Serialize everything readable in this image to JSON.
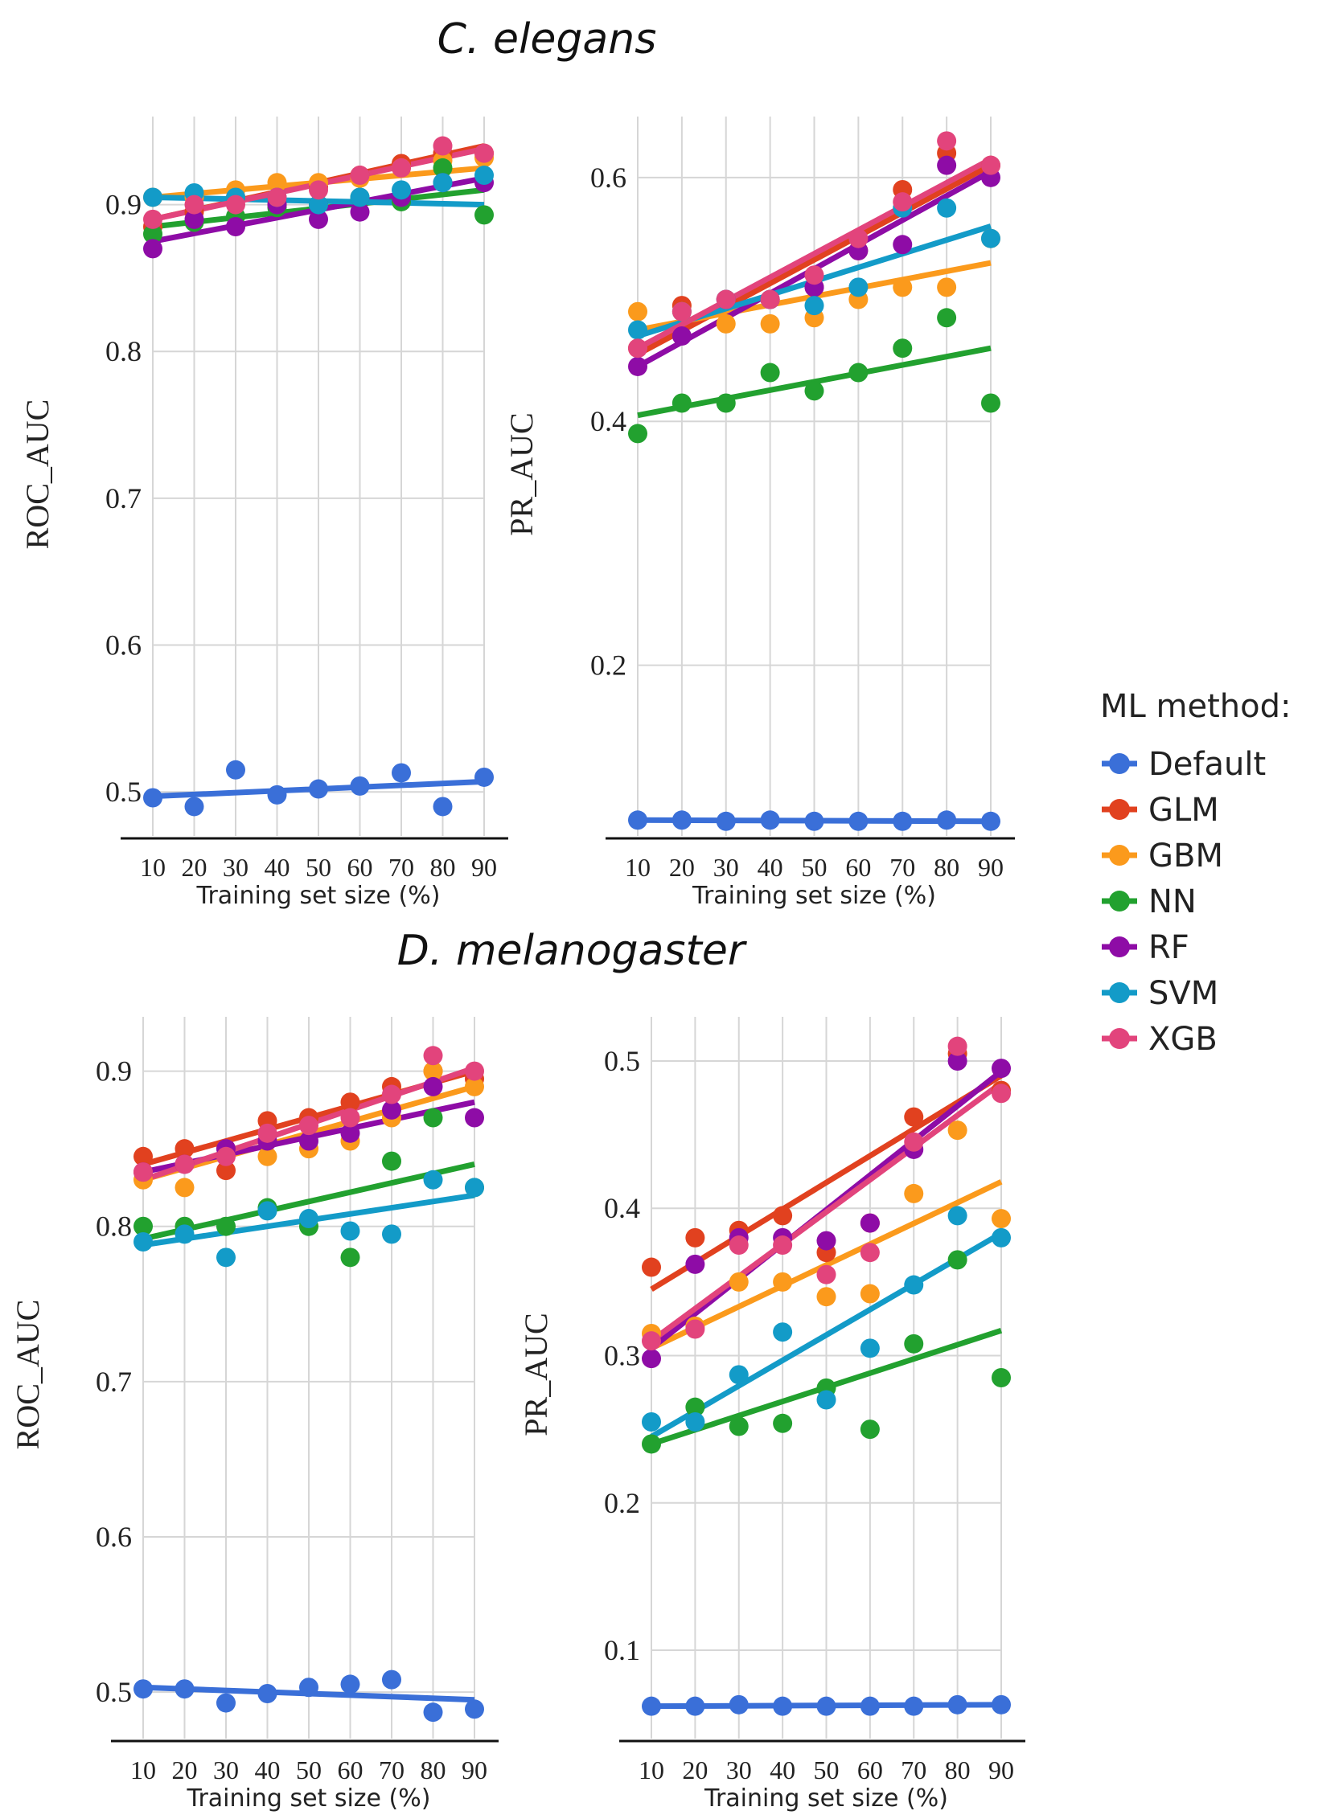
{
  "sections": [
    {
      "title": "C. elegans"
    },
    {
      "title": "D. melanogaster"
    }
  ],
  "legend": {
    "title": "ML method:",
    "items": [
      {
        "name": "Default",
        "color": "#3a6fd8"
      },
      {
        "name": "GLM",
        "color": "#e1411f"
      },
      {
        "name": "GBM",
        "color": "#fb9a1c"
      },
      {
        "name": "NN",
        "color": "#22a12f"
      },
      {
        "name": "RF",
        "color": "#8e0ca6"
      },
      {
        "name": "SVM",
        "color": "#139bc8"
      },
      {
        "name": "XGB",
        "color": "#e2447c"
      }
    ]
  },
  "chart_data": [
    {
      "id": "c-elegans-roc",
      "type": "scatter",
      "section": "C. elegans",
      "xlabel": "Training set size (%)",
      "ylabel": "ROC_AUC",
      "x": [
        10,
        20,
        30,
        40,
        50,
        60,
        70,
        80,
        90
      ],
      "xlim": [
        10,
        90
      ],
      "ylim": [
        0.47,
        0.96
      ],
      "yticks": [
        0.5,
        0.6,
        0.7,
        0.8,
        0.9
      ],
      "ytick_labels": [
        "0.5",
        "0.6",
        "0.7",
        "0.8",
        "0.9"
      ],
      "xtick_labels": [
        "10",
        "20",
        "30",
        "40",
        "50",
        "60",
        "70",
        "80",
        "90"
      ],
      "series": [
        {
          "name": "Default",
          "values": [
            0.496,
            0.49,
            0.515,
            0.498,
            0.502,
            0.504,
            0.513,
            0.49,
            0.51
          ],
          "fit": [
            0.497,
            0.507
          ]
        },
        {
          "name": "GLM",
          "values": [
            0.885,
            0.895,
            0.905,
            0.9,
            0.912,
            0.92,
            0.928,
            0.935,
            0.935
          ],
          "fit": [
            0.89,
            0.94
          ]
        },
        {
          "name": "GBM",
          "values": [
            0.905,
            0.905,
            0.91,
            0.915,
            0.915,
            0.918,
            0.925,
            0.93,
            0.932
          ],
          "fit": [
            0.905,
            0.925
          ]
        },
        {
          "name": "NN",
          "values": [
            0.88,
            0.888,
            0.892,
            0.898,
            0.9,
            0.905,
            0.902,
            0.925,
            0.893
          ],
          "fit": [
            0.885,
            0.91
          ]
        },
        {
          "name": "RF",
          "values": [
            0.87,
            0.89,
            0.885,
            0.9,
            0.89,
            0.895,
            0.905,
            0.915,
            0.915
          ],
          "fit": [
            0.875,
            0.918
          ]
        },
        {
          "name": "SVM",
          "values": [
            0.905,
            0.908,
            0.905,
            0.905,
            0.9,
            0.905,
            0.91,
            0.915,
            0.92
          ],
          "fit": [
            0.905,
            0.9
          ]
        },
        {
          "name": "XGB",
          "values": [
            0.89,
            0.9,
            0.9,
            0.905,
            0.91,
            0.92,
            0.925,
            0.94,
            0.935
          ],
          "fit": [
            0.89,
            0.938
          ]
        }
      ]
    },
    {
      "id": "c-elegans-pr",
      "type": "scatter",
      "section": "C. elegans",
      "xlabel": "Training set size (%)",
      "ylabel": "PR_AUC",
      "x": [
        10,
        20,
        30,
        40,
        50,
        60,
        70,
        80,
        90
      ],
      "xlim": [
        10,
        90
      ],
      "ylim": [
        0.06,
        0.65
      ],
      "yticks": [
        0.2,
        0.4,
        0.6
      ],
      "ytick_labels": [
        "0.2",
        "0.4",
        "0.6"
      ],
      "xtick_labels": [
        "10",
        "20",
        "30",
        "40",
        "50",
        "60",
        "70",
        "80",
        "90"
      ],
      "series": [
        {
          "name": "Default",
          "values": [
            0.073,
            0.073,
            0.072,
            0.073,
            0.072,
            0.072,
            0.072,
            0.073,
            0.072
          ],
          "fit": [
            0.073,
            0.072
          ]
        },
        {
          "name": "GLM",
          "values": [
            0.46,
            0.495,
            0.5,
            0.5,
            0.51,
            0.54,
            0.59,
            0.62,
            0.61
          ],
          "fit": [
            0.455,
            0.61
          ]
        },
        {
          "name": "GBM",
          "values": [
            0.49,
            0.49,
            0.48,
            0.48,
            0.485,
            0.5,
            0.51,
            0.51,
            0.55
          ],
          "fit": [
            0.475,
            0.53
          ]
        },
        {
          "name": "NN",
          "values": [
            0.39,
            0.415,
            0.415,
            0.44,
            0.425,
            0.44,
            0.46,
            0.485,
            0.415
          ],
          "fit": [
            0.405,
            0.46
          ]
        },
        {
          "name": "RF",
          "values": [
            0.445,
            0.47,
            0.5,
            0.5,
            0.51,
            0.54,
            0.545,
            0.61,
            0.6
          ],
          "fit": [
            0.445,
            0.605
          ]
        },
        {
          "name": "SVM",
          "values": [
            0.475,
            0.49,
            0.5,
            0.5,
            0.495,
            0.51,
            0.575,
            0.575,
            0.55
          ],
          "fit": [
            0.47,
            0.56
          ]
        },
        {
          "name": "XGB",
          "values": [
            0.46,
            0.49,
            0.5,
            0.5,
            0.52,
            0.55,
            0.58,
            0.63,
            0.61
          ],
          "fit": [
            0.46,
            0.615
          ]
        }
      ]
    },
    {
      "id": "d-melanogaster-roc",
      "type": "scatter",
      "section": "D. melanogaster",
      "xlabel": "Training set size (%)",
      "ylabel": "ROC_AUC",
      "x": [
        10,
        20,
        30,
        40,
        50,
        60,
        70,
        80,
        90
      ],
      "xlim": [
        10,
        90
      ],
      "ylim": [
        0.47,
        0.935
      ],
      "yticks": [
        0.5,
        0.6,
        0.7,
        0.8,
        0.9
      ],
      "ytick_labels": [
        "0.5",
        "0.6",
        "0.7",
        "0.8",
        "0.9"
      ],
      "xtick_labels": [
        "10",
        "20",
        "30",
        "40",
        "50",
        "60",
        "70",
        "80",
        "90"
      ],
      "series": [
        {
          "name": "Default",
          "values": [
            0.502,
            0.502,
            0.493,
            0.499,
            0.503,
            0.505,
            0.508,
            0.487,
            0.489
          ],
          "fit": [
            0.503,
            0.495
          ]
        },
        {
          "name": "GLM",
          "values": [
            0.845,
            0.85,
            0.836,
            0.868,
            0.87,
            0.88,
            0.89,
            0.9,
            0.895
          ],
          "fit": [
            0.84,
            0.9
          ]
        },
        {
          "name": "GBM",
          "values": [
            0.83,
            0.825,
            0.85,
            0.845,
            0.85,
            0.855,
            0.87,
            0.9,
            0.89
          ],
          "fit": [
            0.83,
            0.89
          ]
        },
        {
          "name": "NN",
          "values": [
            0.8,
            0.8,
            0.8,
            0.812,
            0.8,
            0.78,
            0.842,
            0.87,
            0.825
          ],
          "fit": [
            0.792,
            0.84
          ]
        },
        {
          "name": "RF",
          "values": [
            0.835,
            0.84,
            0.85,
            0.855,
            0.855,
            0.86,
            0.875,
            0.89,
            0.87
          ],
          "fit": [
            0.835,
            0.88
          ]
        },
        {
          "name": "SVM",
          "values": [
            0.79,
            0.795,
            0.78,
            0.81,
            0.805,
            0.797,
            0.795,
            0.83,
            0.825
          ],
          "fit": [
            0.788,
            0.82
          ]
        },
        {
          "name": "XGB",
          "values": [
            0.835,
            0.84,
            0.845,
            0.86,
            0.865,
            0.87,
            0.885,
            0.91,
            0.9
          ],
          "fit": [
            0.83,
            0.902
          ]
        }
      ]
    },
    {
      "id": "d-melanogaster-pr",
      "type": "scatter",
      "section": "D. melanogaster",
      "xlabel": "Training set size (%)",
      "ylabel": "PR_AUC",
      "x": [
        10,
        20,
        30,
        40,
        50,
        60,
        70,
        80,
        90
      ],
      "xlim": [
        10,
        90
      ],
      "ylim": [
        0.04,
        0.53
      ],
      "yticks": [
        0.1,
        0.2,
        0.3,
        0.4,
        0.5
      ],
      "ytick_labels": [
        "0.1",
        "0.2",
        "0.3",
        "0.4",
        "0.5"
      ],
      "xtick_labels": [
        "10",
        "20",
        "30",
        "40",
        "50",
        "60",
        "70",
        "80",
        "90"
      ],
      "series": [
        {
          "name": "Default",
          "values": [
            0.062,
            0.062,
            0.063,
            0.062,
            0.062,
            0.062,
            0.062,
            0.063,
            0.063
          ],
          "fit": [
            0.062,
            0.063
          ]
        },
        {
          "name": "GLM",
          "values": [
            0.36,
            0.38,
            0.385,
            0.395,
            0.37,
            0.39,
            0.462,
            0.505,
            0.48
          ],
          "fit": [
            0.345,
            0.49
          ]
        },
        {
          "name": "GBM",
          "values": [
            0.315,
            0.32,
            0.35,
            0.35,
            0.34,
            0.342,
            0.41,
            0.453,
            0.393
          ],
          "fit": [
            0.305,
            0.418
          ]
        },
        {
          "name": "NN",
          "values": [
            0.24,
            0.265,
            0.252,
            0.254,
            0.278,
            0.25,
            0.308,
            0.365,
            0.285
          ],
          "fit": [
            0.24,
            0.317
          ]
        },
        {
          "name": "RF",
          "values": [
            0.298,
            0.362,
            0.38,
            0.38,
            0.378,
            0.39,
            0.44,
            0.5,
            0.495
          ],
          "fit": [
            0.305,
            0.493
          ]
        },
        {
          "name": "SVM",
          "values": [
            0.255,
            0.255,
            0.287,
            0.316,
            0.27,
            0.305,
            0.348,
            0.395,
            0.38
          ],
          "fit": [
            0.245,
            0.383
          ]
        },
        {
          "name": "XGB",
          "values": [
            0.31,
            0.318,
            0.375,
            0.375,
            0.355,
            0.37,
            0.445,
            0.51,
            0.478
          ],
          "fit": [
            0.31,
            0.485
          ]
        }
      ]
    }
  ]
}
